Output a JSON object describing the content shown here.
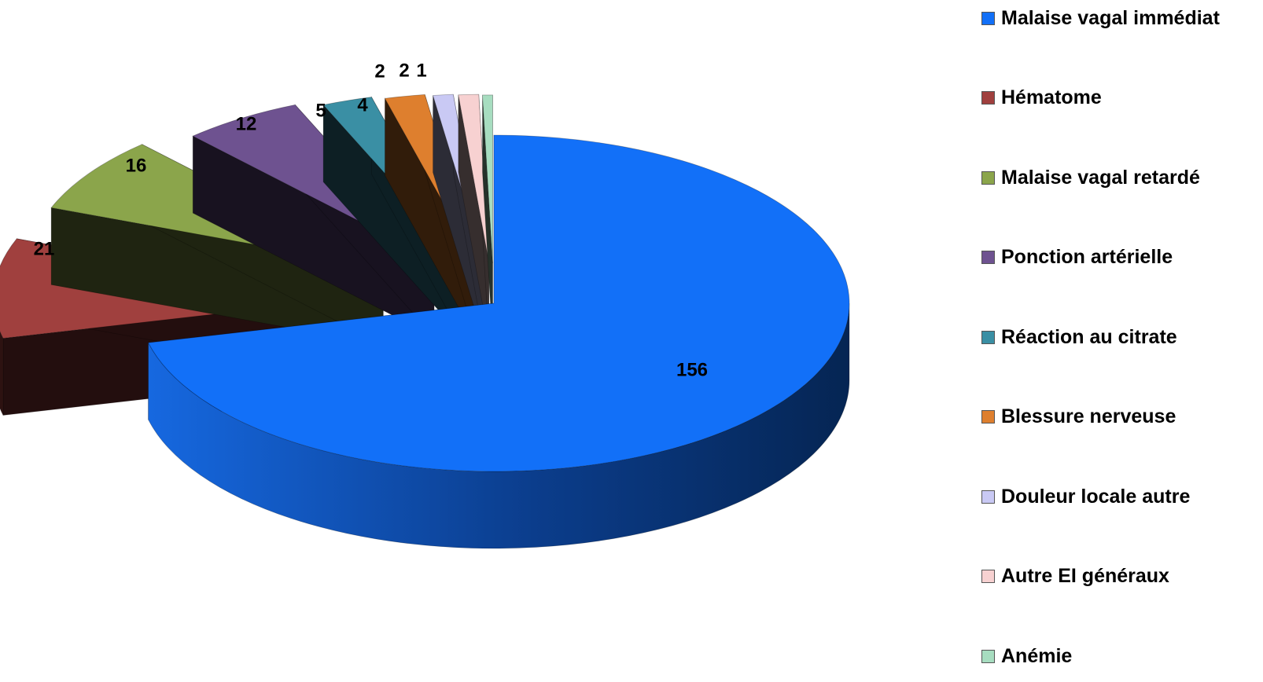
{
  "chart_data": {
    "type": "pie",
    "style": "3d-exploded",
    "title": "",
    "legend_position": "right",
    "slices": [
      {
        "label": "Malaise vagal immédiat",
        "value": 156,
        "value_label": "156",
        "color": "#1270F8"
      },
      {
        "label": "Hématome",
        "value": 21,
        "value_label": "21",
        "color": "#A0403E"
      },
      {
        "label": "Malaise vagal retardé",
        "value": 16,
        "value_label": "16",
        "color": "#8BA54B"
      },
      {
        "label": "Ponction artérielle",
        "value": 12,
        "value_label": "12",
        "color": "#6E5290"
      },
      {
        "label": "Réaction au citrate",
        "value": 5,
        "value_label": "5",
        "color": "#3A8FA4"
      },
      {
        "label": "Blessure nerveuse",
        "value": 4,
        "value_label": "4",
        "color": "#DE7F2E"
      },
      {
        "label": "Douleur locale autre",
        "value": 2,
        "value_label": "2",
        "color": "#C9C9F4"
      },
      {
        "label": "Autre EI généraux",
        "value": 2,
        "value_label": "2",
        "color": "#F7D1D1"
      },
      {
        "label": "Anémie",
        "value": 1,
        "value_label": "1",
        "color": "#A7DDC0"
      }
    ]
  }
}
